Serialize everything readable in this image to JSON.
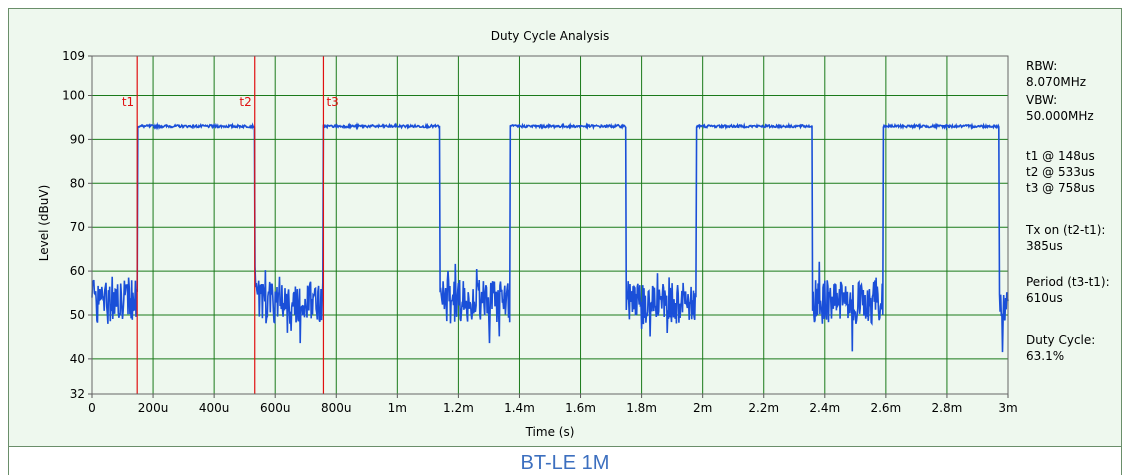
{
  "caption": "BT-LE 1M",
  "colors": {
    "background": "#eef8ee",
    "grid": "#1a7a1a",
    "trace": "#1a4fd8",
    "markers": "#e01010",
    "caption": "#3c6fbf"
  },
  "chart_data": {
    "type": "line",
    "title": "Duty Cycle Analysis",
    "xlabel": "Time (s)",
    "ylabel": "Level (dBuV)",
    "xlim": [
      0,
      0.003
    ],
    "ylim": [
      32,
      109
    ],
    "xticks": [
      {
        "v": 0,
        "label": "0"
      },
      {
        "v": 0.0002,
        "label": "200u"
      },
      {
        "v": 0.0004,
        "label": "400u"
      },
      {
        "v": 0.0006,
        "label": "600u"
      },
      {
        "v": 0.0008,
        "label": "800u"
      },
      {
        "v": 0.001,
        "label": "1m"
      },
      {
        "v": 0.0012,
        "label": "1.2m"
      },
      {
        "v": 0.0014,
        "label": "1.4m"
      },
      {
        "v": 0.0016,
        "label": "1.6m"
      },
      {
        "v": 0.0018,
        "label": "1.8m"
      },
      {
        "v": 0.002,
        "label": "2m"
      },
      {
        "v": 0.0022,
        "label": "2.2m"
      },
      {
        "v": 0.0024,
        "label": "2.4m"
      },
      {
        "v": 0.0026,
        "label": "2.6m"
      },
      {
        "v": 0.0028,
        "label": "2.8m"
      },
      {
        "v": 0.003,
        "label": "3m"
      }
    ],
    "yticks": [
      32,
      40,
      50,
      60,
      70,
      80,
      90,
      100,
      109
    ],
    "grid": true,
    "series": [
      {
        "high_level": 93,
        "noise_floor": 53,
        "on_intervals": [
          [
            0.000148,
            0.000533
          ],
          [
            0.000758,
            0.00114
          ],
          [
            0.00137,
            0.00175
          ],
          [
            0.00198,
            0.00236
          ],
          [
            0.00259,
            0.00297
          ]
        ],
        "trace_end": 0.003
      }
    ],
    "markers": [
      {
        "label": "t1",
        "x": 0.000148
      },
      {
        "label": "t2",
        "x": 0.000533
      },
      {
        "label": "t3",
        "x": 0.000758
      }
    ],
    "annotations": [
      "RBW:",
      "8.070MHz",
      "VBW:",
      "50.000MHz",
      "t1 @ 148us",
      "t2 @ 533us",
      "t3 @ 758us",
      "Tx on (t2-t1):",
      "385us",
      "Period (t3-t1):",
      "610us",
      "Duty Cycle:",
      "63.1%"
    ]
  }
}
